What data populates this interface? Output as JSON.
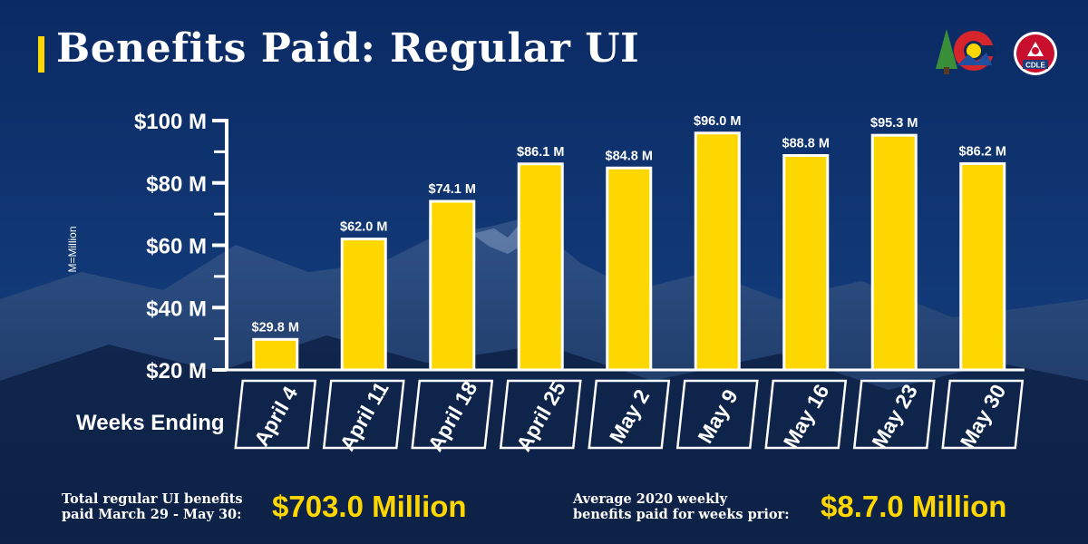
{
  "header": {
    "title": "Benefits Paid: Regular UI"
  },
  "logos": {
    "state_logo": "colorado-logo",
    "agency_logo": "CDLE"
  },
  "colors": {
    "background": "#0b2a5e",
    "bar": "#ffd700",
    "bar_outline": "#ffffff",
    "text": "#ffffff",
    "accent": "#ffd700"
  },
  "chart_data": {
    "type": "bar",
    "title": "",
    "xlabel": "Weeks Ending",
    "ylabel": "M=Million",
    "categories": [
      "April 4",
      "April 11",
      "April 18",
      "April 25",
      "May 2",
      "May 9",
      "May 16",
      "May 23",
      "May 30"
    ],
    "values": [
      29.8,
      62.0,
      74.1,
      86.1,
      84.8,
      96.0,
      88.8,
      95.3,
      86.2
    ],
    "data_labels": [
      "$29.8 M",
      "$62.0 M",
      "$74.1 M",
      "$86.1 M",
      "$84.8 M",
      "$96.0 M",
      "$88.8 M",
      "$95.3 M",
      "$86.2 M"
    ],
    "ylim": [
      20,
      100
    ],
    "yticks": [
      20,
      40,
      60,
      80,
      100
    ],
    "ytick_labels": [
      "$20 M",
      "$40 M",
      "$60 M",
      "$80 M",
      "$100 M"
    ],
    "minor_ticks": [
      30,
      50,
      70,
      90
    ],
    "grid": false,
    "legend": "none"
  },
  "footer": {
    "total_label_line1": "Total regular UI benefits",
    "total_label_line2": "paid March 29 - May 30:",
    "total_value": "$703.0 Million",
    "avg_label_line1": "Average 2020 weekly",
    "avg_label_line2": "benefits paid for weeks prior:",
    "avg_value": "$8.7.0 Million"
  }
}
